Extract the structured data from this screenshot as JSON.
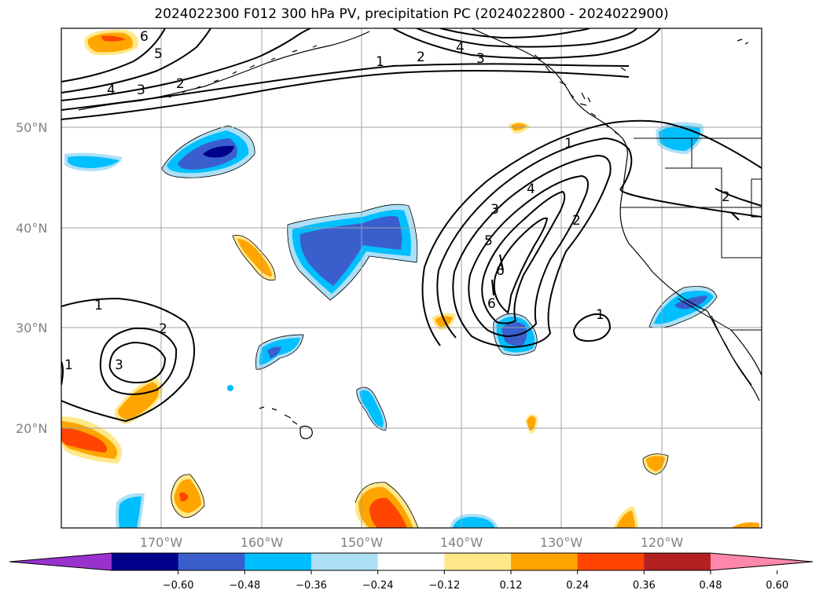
{
  "title": "2024022300 F012 300 hPa PV, precipitation PC (2024022800 - 2024022900)",
  "map": {
    "lat_labels": [
      "50°N",
      "40°N",
      "30°N",
      "20°N"
    ],
    "lon_labels": [
      "170°W",
      "160°W",
      "150°W",
      "140°W",
      "130°W",
      "120°W"
    ]
  },
  "contour_labels": [
    "1",
    "2",
    "3",
    "4",
    "5",
    "6",
    "1",
    "2",
    "3",
    "4",
    "5",
    "6",
    "6",
    "1",
    "2",
    "3",
    "1",
    "1",
    "2"
  ],
  "colorbar": {
    "ticks": [
      "−0.60",
      "−0.48",
      "−0.36",
      "−0.24",
      "−0.12",
      "0.12",
      "0.24",
      "0.36",
      "0.48",
      "0.60"
    ],
    "colors": [
      "#9932cc",
      "#00008b",
      "#3a5fcd",
      "#00bfff",
      "#aee0f5",
      "#ffffff",
      "#ffe88a",
      "#ffa500",
      "#ff4500",
      "#b22222",
      "#ff88aa"
    ]
  }
}
